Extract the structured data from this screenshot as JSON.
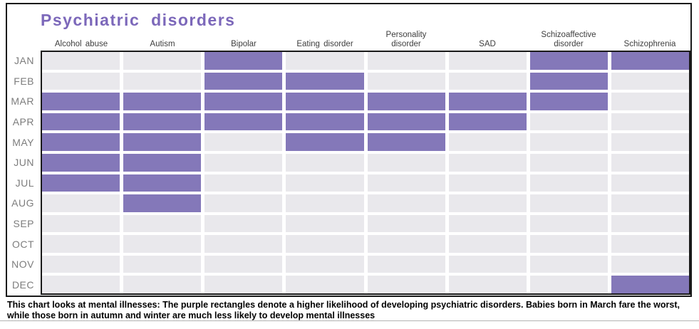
{
  "title": "Psychiatric disorders",
  "columns": [
    "Alcohol abuse",
    "Autism",
    "Bipolar",
    "Eating disorder",
    "Personality disorder",
    "SAD",
    "Schizoaffective disorder",
    "Schizophrenia"
  ],
  "months": [
    "JAN",
    "FEB",
    "MAR",
    "APR",
    "MAY",
    "JUN",
    "JUL",
    "AUG",
    "SEP",
    "OCT",
    "NOV",
    "DEC"
  ],
  "caption": "This chart looks at mental illnesses: The purple rectangles denote a higher likelihood of developing psychiatric disorders. Babies born in March fare the worst, while those born in autumn and winter are much less likely to develop mental illnesses",
  "colors": {
    "title": "#7c68ba",
    "highlight": "#8478b9",
    "empty": "#e9e8ec",
    "border": "#1a1a1a"
  },
  "chart_data": {
    "type": "heatmap",
    "title": "Psychiatric disorders",
    "x_categories": [
      "Alcohol abuse",
      "Autism",
      "Bipolar",
      "Eating disorder",
      "Personality disorder",
      "SAD",
      "Schizoaffective disorder",
      "Schizophrenia"
    ],
    "y_categories": [
      "JAN",
      "FEB",
      "MAR",
      "APR",
      "MAY",
      "JUN",
      "JUL",
      "AUG",
      "SEP",
      "OCT",
      "NOV",
      "DEC"
    ],
    "values": [
      [
        0,
        0,
        1,
        0,
        0,
        0,
        1,
        1
      ],
      [
        0,
        0,
        1,
        1,
        0,
        0,
        1,
        0
      ],
      [
        1,
        1,
        1,
        1,
        1,
        1,
        1,
        0
      ],
      [
        1,
        1,
        1,
        1,
        1,
        1,
        0,
        0
      ],
      [
        1,
        1,
        0,
        1,
        1,
        0,
        0,
        0
      ],
      [
        1,
        1,
        0,
        0,
        0,
        0,
        0,
        0
      ],
      [
        1,
        1,
        0,
        0,
        0,
        0,
        0,
        0
      ],
      [
        0,
        1,
        0,
        0,
        0,
        0,
        0,
        0
      ],
      [
        0,
        0,
        0,
        0,
        0,
        0,
        0,
        0
      ],
      [
        0,
        0,
        0,
        0,
        0,
        0,
        0,
        0
      ],
      [
        0,
        0,
        0,
        0,
        0,
        0,
        0,
        0
      ],
      [
        0,
        0,
        0,
        0,
        0,
        0,
        0,
        1
      ]
    ],
    "value_legend": "1 = purple highlight (higher likelihood of disorder for babies born that month), 0 = gray (baseline)",
    "grid": false,
    "legend_position": "none"
  }
}
